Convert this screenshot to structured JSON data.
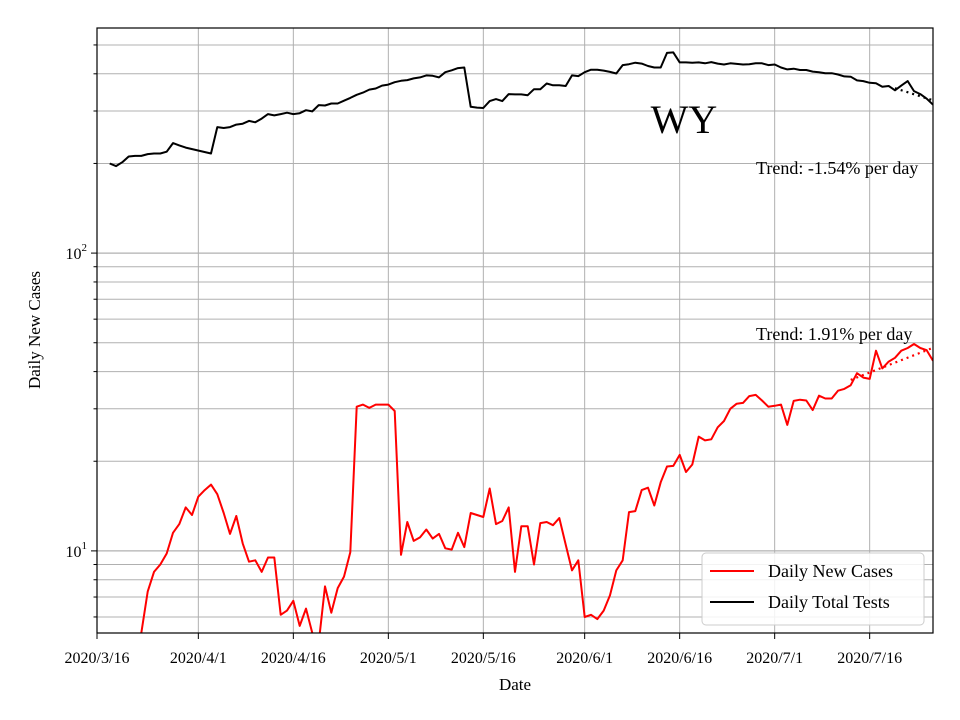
{
  "chart_data": {
    "type": "line",
    "xlabel": "Date",
    "ylabel": "Daily New Cases",
    "y_scale": "log",
    "ylim": [
      5.3,
      570
    ],
    "x_start": "2020-03-16",
    "x_end": "2020-07-26",
    "grid": true,
    "x_ticks": [
      {
        "date": "2020-03-16",
        "label": "2020/3/16"
      },
      {
        "date": "2020-04-01",
        "label": "2020/4/1"
      },
      {
        "date": "2020-04-16",
        "label": "2020/4/16"
      },
      {
        "date": "2020-05-01",
        "label": "2020/5/1"
      },
      {
        "date": "2020-05-16",
        "label": "2020/5/16"
      },
      {
        "date": "2020-06-01",
        "label": "2020/6/1"
      },
      {
        "date": "2020-06-16",
        "label": "2020/6/16"
      },
      {
        "date": "2020-07-01",
        "label": "2020/7/1"
      },
      {
        "date": "2020-07-16",
        "label": "2020/7/16"
      }
    ],
    "y_major_ticks": [
      {
        "value": 10,
        "base": "10",
        "exp": "1"
      },
      {
        "value": 100,
        "base": "10",
        "exp": "2"
      }
    ],
    "annotations": {
      "state": "WY",
      "trend_tests": "Trend: -1.54% per day",
      "trend_cases": "Trend: 1.91% per day"
    },
    "legend": {
      "position": "lower-right",
      "entries": [
        "Daily New Cases",
        "Daily Total Tests"
      ]
    },
    "series": [
      {
        "name": "Daily New Cases",
        "color": "#ff0000",
        "x": [
          "2020-03-23",
          "2020-03-24",
          "2020-03-25",
          "2020-03-26",
          "2020-03-27",
          "2020-03-28",
          "2020-03-29",
          "2020-03-30",
          "2020-03-31",
          "2020-04-01",
          "2020-04-02",
          "2020-04-03",
          "2020-04-04",
          "2020-04-05",
          "2020-04-06",
          "2020-04-07",
          "2020-04-08",
          "2020-04-09",
          "2020-04-10",
          "2020-04-11",
          "2020-04-12",
          "2020-04-13",
          "2020-04-14",
          "2020-04-15",
          "2020-04-16",
          "2020-04-17",
          "2020-04-18",
          "2020-04-19",
          "2020-04-20",
          "2020-04-21",
          "2020-04-22",
          "2020-04-23",
          "2020-04-24",
          "2020-04-25",
          "2020-04-26",
          "2020-04-27",
          "2020-04-28",
          "2020-04-29",
          "2020-04-30",
          "2020-05-01",
          "2020-05-02",
          "2020-05-03",
          "2020-05-04",
          "2020-05-05",
          "2020-05-06",
          "2020-05-07",
          "2020-05-08",
          "2020-05-09",
          "2020-05-10",
          "2020-05-11",
          "2020-05-12",
          "2020-05-13",
          "2020-05-14",
          "2020-05-15",
          "2020-05-16",
          "2020-05-17",
          "2020-05-18",
          "2020-05-19",
          "2020-05-20",
          "2020-05-21",
          "2020-05-22",
          "2020-05-23",
          "2020-05-24",
          "2020-05-25",
          "2020-05-26",
          "2020-05-27",
          "2020-05-28",
          "2020-05-29",
          "2020-05-30",
          "2020-05-31",
          "2020-06-01",
          "2020-06-02",
          "2020-06-03",
          "2020-06-04",
          "2020-06-05",
          "2020-06-06",
          "2020-06-07",
          "2020-06-08",
          "2020-06-09",
          "2020-06-10",
          "2020-06-11",
          "2020-06-12",
          "2020-06-13",
          "2020-06-14",
          "2020-06-15",
          "2020-06-16",
          "2020-06-17",
          "2020-06-18",
          "2020-06-19",
          "2020-06-20",
          "2020-06-21",
          "2020-06-22",
          "2020-06-23",
          "2020-06-24",
          "2020-06-25",
          "2020-06-26",
          "2020-06-27",
          "2020-06-28",
          "2020-06-29",
          "2020-06-30",
          "2020-07-01",
          "2020-07-02",
          "2020-07-03",
          "2020-07-04",
          "2020-07-05",
          "2020-07-06",
          "2020-07-07",
          "2020-07-08",
          "2020-07-09",
          "2020-07-10",
          "2020-07-11",
          "2020-07-12",
          "2020-07-13",
          "2020-07-14",
          "2020-07-15",
          "2020-07-16",
          "2020-07-17",
          "2020-07-18",
          "2020-07-19",
          "2020-07-20",
          "2020-07-21",
          "2020-07-22",
          "2020-07-23",
          "2020-07-24",
          "2020-07-25",
          "2020-07-26"
        ],
        "values": [
          5.3,
          7.3,
          8.5,
          9.0,
          9.8,
          11.5,
          12.3,
          14.0,
          13.2,
          15.2,
          16.0,
          16.7,
          15.5,
          13.4,
          11.4,
          13.1,
          10.6,
          9.2,
          9.3,
          8.5,
          9.5,
          9.5,
          6.1,
          6.3,
          6.8,
          5.6,
          6.4,
          5.3,
          4.9,
          7.6,
          6.2,
          7.5,
          8.2,
          9.9,
          30.5,
          31.0,
          30.2,
          31.0,
          31.0,
          31.0,
          29.5,
          9.7,
          12.5,
          10.8,
          11.1,
          11.8,
          11.0,
          11.4,
          10.2,
          10.1,
          11.5,
          10.3,
          13.4,
          13.2,
          13.0,
          16.2,
          12.3,
          12.6,
          14.0,
          8.5,
          12.1,
          12.1,
          9.0,
          12.4,
          12.5,
          12.2,
          12.9,
          10.5,
          8.6,
          9.3,
          6.0,
          6.1,
          5.9,
          6.3,
          7.1,
          8.6,
          9.3,
          13.5,
          13.6,
          16.0,
          16.3,
          14.2,
          17.0,
          19.2,
          19.3,
          21.0,
          18.4,
          19.5,
          24.2,
          23.5,
          23.7,
          26.0,
          27.3,
          30.0,
          31.2,
          31.4,
          33.1,
          33.4,
          32.0,
          30.5,
          30.7,
          31.0,
          26.5,
          31.9,
          32.2,
          32.0,
          29.7,
          33.2,
          32.5,
          32.5,
          34.5,
          35.0,
          36.0,
          39.5,
          38.2,
          37.8,
          47.0,
          41.0,
          43.2,
          44.5,
          47.0,
          48.0,
          49.5,
          48.0,
          47.2,
          43.5
        ]
      },
      {
        "name": "Daily Total Tests",
        "color": "#000000",
        "x": [
          "2020-03-18",
          "2020-03-19",
          "2020-03-20",
          "2020-03-21",
          "2020-03-22",
          "2020-03-23",
          "2020-03-24",
          "2020-03-25",
          "2020-03-26",
          "2020-03-27",
          "2020-03-28",
          "2020-03-29",
          "2020-03-30",
          "2020-04-03",
          "2020-04-04",
          "2020-04-05",
          "2020-04-06",
          "2020-04-07",
          "2020-04-08",
          "2020-04-09",
          "2020-04-10",
          "2020-04-11",
          "2020-04-12",
          "2020-04-13",
          "2020-04-14",
          "2020-04-15",
          "2020-04-16",
          "2020-04-17",
          "2020-04-18",
          "2020-04-19",
          "2020-04-20",
          "2020-04-21",
          "2020-04-22",
          "2020-04-23",
          "2020-04-24",
          "2020-04-25",
          "2020-04-26",
          "2020-04-27",
          "2020-04-28",
          "2020-04-29",
          "2020-04-30",
          "2020-05-01",
          "2020-05-02",
          "2020-05-03",
          "2020-05-04",
          "2020-05-05",
          "2020-05-06",
          "2020-05-07",
          "2020-05-08",
          "2020-05-09",
          "2020-05-10",
          "2020-05-11",
          "2020-05-12",
          "2020-05-13",
          "2020-05-14",
          "2020-05-15",
          "2020-05-16",
          "2020-05-17",
          "2020-05-18",
          "2020-05-19",
          "2020-05-20",
          "2020-05-21",
          "2020-05-22",
          "2020-05-23",
          "2020-05-24",
          "2020-05-25",
          "2020-05-26",
          "2020-05-27",
          "2020-05-28",
          "2020-05-29",
          "2020-05-30",
          "2020-05-31",
          "2020-06-01",
          "2020-06-02",
          "2020-06-03",
          "2020-06-04",
          "2020-06-05",
          "2020-06-06",
          "2020-06-07",
          "2020-06-08",
          "2020-06-09",
          "2020-06-10",
          "2020-06-11",
          "2020-06-12",
          "2020-06-13",
          "2020-06-14",
          "2020-06-15",
          "2020-06-16",
          "2020-06-17",
          "2020-06-18",
          "2020-06-19",
          "2020-06-20",
          "2020-06-21",
          "2020-06-22",
          "2020-06-23",
          "2020-06-24",
          "2020-06-25",
          "2020-06-26",
          "2020-06-27",
          "2020-06-28",
          "2020-06-29",
          "2020-06-30",
          "2020-07-01",
          "2020-07-02",
          "2020-07-03",
          "2020-07-04",
          "2020-07-05",
          "2020-07-06",
          "2020-07-07",
          "2020-07-08",
          "2020-07-09",
          "2020-07-10",
          "2020-07-11",
          "2020-07-12",
          "2020-07-13",
          "2020-07-14",
          "2020-07-15",
          "2020-07-16",
          "2020-07-17",
          "2020-07-18",
          "2020-07-19",
          "2020-07-20",
          "2020-07-21",
          "2020-07-22",
          "2020-07-23",
          "2020-07-24",
          "2020-07-25",
          "2020-07-26"
        ],
        "values": [
          200,
          196,
          202,
          211,
          212,
          212,
          215,
          216,
          216,
          219,
          234,
          230,
          226,
          216,
          265,
          263,
          265,
          270,
          272,
          278,
          275,
          283,
          293,
          290,
          293,
          296,
          293,
          295,
          302,
          299,
          314,
          313,
          318,
          318,
          325,
          332,
          340,
          346,
          354,
          357,
          365,
          368,
          375,
          379,
          381,
          386,
          389,
          395,
          394,
          389,
          405,
          411,
          418,
          420,
          310,
          308,
          307,
          324,
          329,
          324,
          342,
          341,
          341,
          339,
          355,
          355,
          371,
          366,
          366,
          364,
          395,
          393,
          405,
          413,
          413,
          410,
          406,
          401,
          428,
          431,
          436,
          433,
          425,
          420,
          420,
          470,
          472,
          437,
          437,
          436,
          437,
          434,
          438,
          433,
          430,
          434,
          432,
          430,
          431,
          434,
          434,
          428,
          430,
          420,
          414,
          416,
          412,
          412,
          407,
          405,
          402,
          402,
          398,
          392,
          391,
          380,
          378,
          373,
          372,
          362,
          364,
          352,
          365,
          378,
          350,
          342,
          330,
          315
        ]
      },
      {
        "name": "",
        "style": "dotted",
        "color": "#ff0000",
        "x": [
          "2020-07-13",
          "2020-07-26"
        ],
        "values": [
          37.5,
          48.1
        ]
      },
      {
        "name": "",
        "style": "dotted",
        "color": "#000000",
        "x": [
          "2020-07-20",
          "2020-07-26"
        ],
        "values": [
          358,
          326
        ]
      }
    ]
  }
}
